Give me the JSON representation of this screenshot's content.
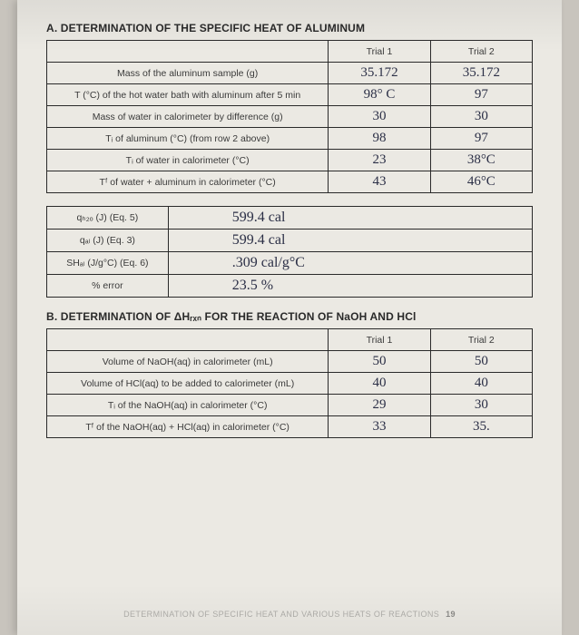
{
  "sectionA": {
    "title": "A.  DETERMINATION OF THE SPECIFIC HEAT OF ALUMINUM",
    "headers": [
      "Trial 1",
      "Trial 2"
    ],
    "rows": [
      {
        "label": "Mass of the aluminum sample (g)",
        "t1": "35.172",
        "t2": "35.172"
      },
      {
        "label": "T (°C) of the hot water bath with aluminum after 5 min",
        "t1": "98° C",
        "t2": "97"
      },
      {
        "label": "Mass of water in calorimeter by difference (g)",
        "t1": "30",
        "t2": "30"
      },
      {
        "label": "Tᵢ of aluminum (°C) (from row 2 above)",
        "t1": "98",
        "t2": "97"
      },
      {
        "label": "Tᵢ of water in calorimeter (°C)",
        "t1": "23",
        "t2": "38°C"
      },
      {
        "label": "Tᶠ of water + aluminum in calorimeter (°C)",
        "t1": "43",
        "t2": "46°C"
      }
    ],
    "calc": [
      {
        "label": "qₕ₂ₒ (J) (Eq. 5)",
        "val": "599.4 cal"
      },
      {
        "label": "qₐₗ (J) (Eq. 3)",
        "val": "599.4 cal"
      },
      {
        "label": "SHₐₗ (J/g°C) (Eq. 6)",
        "val": ".309 cal/g°C"
      },
      {
        "label": "% error",
        "val": "23.5 %"
      }
    ]
  },
  "sectionB": {
    "title": "B.  DETERMINATION OF ΔHᵣₓₙ FOR THE REACTION OF NaOH AND HCl",
    "headers": [
      "Trial 1",
      "Trial 2"
    ],
    "rows": [
      {
        "label": "Volume of NaOH(aq) in calorimeter (mL)",
        "t1": "50",
        "t2": "50"
      },
      {
        "label": "Volume of HCl(aq) to be added to calorimeter (mL)",
        "t1": "40",
        "t2": "40"
      },
      {
        "label": "Tᵢ of the NaOH(aq) in calorimeter (°C)",
        "t1": "29",
        "t2": "30"
      },
      {
        "label": "Tᶠ of the NaOH(aq) + HCl(aq) in calorimeter (°C)",
        "t1": "33",
        "t2": "35."
      }
    ]
  },
  "footer": {
    "text": "DETERMINATION OF SPECIFIC HEAT AND VARIOUS HEATS OF REACTIONS",
    "page": "19"
  }
}
